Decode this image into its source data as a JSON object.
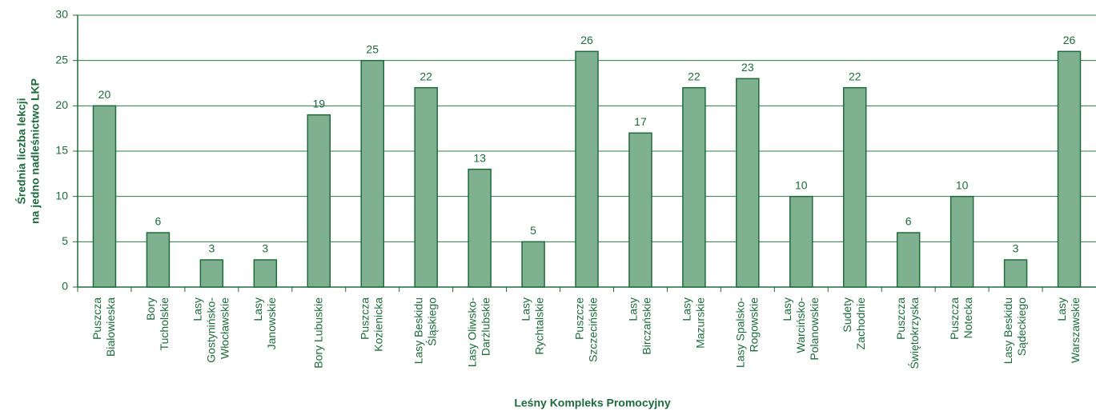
{
  "chart_data": {
    "type": "bar",
    "x_label": "Leśny Kompleks Promocyjny",
    "y_label": [
      "Średnia liczba lekcji",
      "na jedno nadleśnictwo LKP"
    ],
    "categories": [
      "Puszcza\nBiałowieska",
      "Bory\nTucholskie",
      "Lasy\nGostynińsko-\nWłocławskie",
      "Lasy\nJanowskie",
      "Bory Lubuskie",
      "Puszcza\nKozienicka",
      "Lasy Beskidu\nŚląskiego",
      "Lasy Oliwsko-\nDarżlubskie",
      "Lasy\nRychtalskie",
      "Puszcze\nSzczecińskie",
      "Lasy\nBirczańskie",
      "Lasy\nMazurskie",
      "Lasy Spalsko-\nRogowskie",
      "Lasy\nWarcińsko-\nPolanowskie",
      "Sudety\nZachodnie",
      "Puszcza\nŚwiętokrzyska",
      "Puszcza\nNotecka",
      "Lasy Beskidu\nSądeckiego",
      "Lasy\nWarszawskie"
    ],
    "values": [
      20,
      6,
      3,
      3,
      19,
      25,
      22,
      13,
      5,
      26,
      17,
      22,
      23,
      10,
      22,
      6,
      10,
      3,
      26
    ],
    "color": "#7fb08f",
    "edge_color": "#1e6b3c",
    "ylim": [
      0,
      30
    ],
    "yticks": [
      0,
      5,
      10,
      15,
      20,
      25,
      30
    ],
    "grid": true
  }
}
